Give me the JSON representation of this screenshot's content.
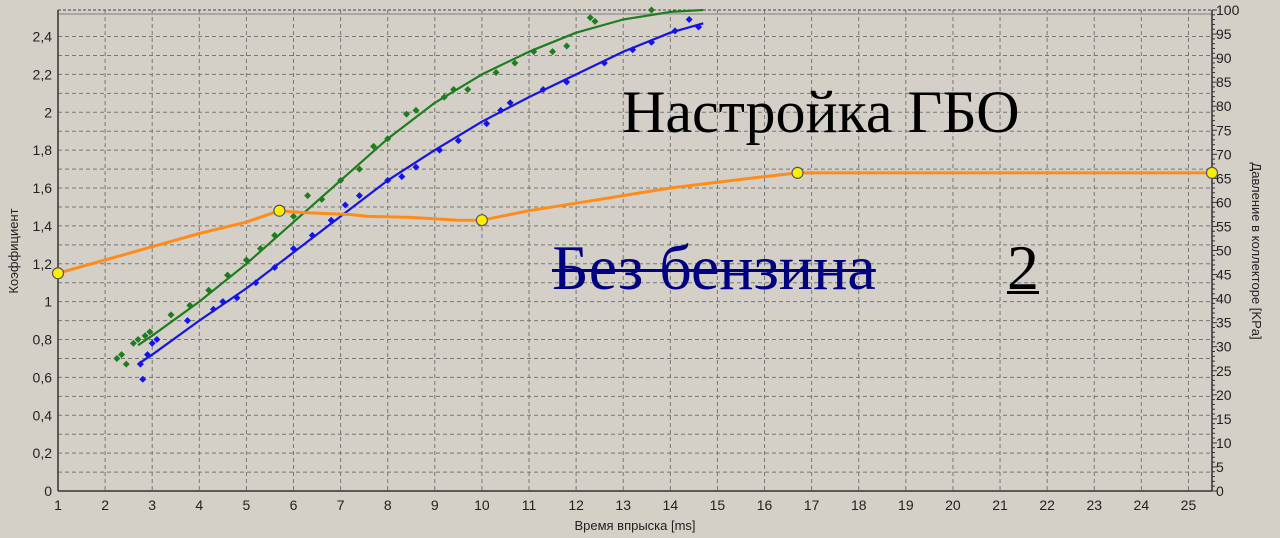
{
  "chart_data": {
    "type": "line",
    "title": "",
    "xlabel": "Время впрыска [ms]",
    "ylabel": "Коэффициент",
    "y2label": "Давление в коллекторе [KPa]",
    "xlim": [
      1,
      25.5
    ],
    "ylim": [
      0,
      2.54
    ],
    "y2lim": [
      0,
      100
    ],
    "xticks": [
      1,
      2,
      3,
      4,
      5,
      6,
      7,
      8,
      9,
      10,
      11,
      12,
      13,
      14,
      15,
      16,
      17,
      18,
      19,
      20,
      21,
      22,
      23,
      24,
      25
    ],
    "yticks": [
      "0",
      "0,2",
      "0,4",
      "0,6",
      "0,8",
      "1",
      "1,2",
      "1,4",
      "1,6",
      "1,8",
      "2",
      "2,2",
      "2,4"
    ],
    "y2ticks": [
      0,
      5,
      10,
      15,
      20,
      25,
      30,
      35,
      40,
      45,
      50,
      55,
      60,
      65,
      70,
      75,
      80,
      85,
      90,
      95,
      100
    ],
    "grid": true,
    "colors": {
      "green": "#1e7d1e",
      "blue": "#1414e6",
      "orange": "#ff8c1a",
      "marker": "#ffee00",
      "background": "#d4d0c8"
    },
    "series": [
      {
        "key": "green-fit",
        "type": "line",
        "color": "#1e7d1e",
        "points": [
          [
            2.7,
            0.77
          ],
          [
            3,
            0.82
          ],
          [
            4,
            1.0
          ],
          [
            5,
            1.2
          ],
          [
            6,
            1.42
          ],
          [
            7,
            1.64
          ],
          [
            8,
            1.86
          ],
          [
            9,
            2.05
          ],
          [
            10,
            2.2
          ],
          [
            11,
            2.32
          ],
          [
            12,
            2.42
          ],
          [
            13,
            2.49
          ],
          [
            14,
            2.53
          ],
          [
            14.7,
            2.54
          ]
        ]
      },
      {
        "key": "blue-fit",
        "type": "line",
        "color": "#1414e6",
        "points": [
          [
            2.7,
            0.67
          ],
          [
            3,
            0.72
          ],
          [
            4,
            0.9
          ],
          [
            5,
            1.07
          ],
          [
            6,
            1.26
          ],
          [
            7,
            1.45
          ],
          [
            8,
            1.64
          ],
          [
            9,
            1.8
          ],
          [
            10,
            1.95
          ],
          [
            11,
            2.08
          ],
          [
            12,
            2.2
          ],
          [
            13,
            2.32
          ],
          [
            14,
            2.42
          ],
          [
            14.7,
            2.47
          ]
        ]
      },
      {
        "key": "green-points",
        "type": "scatter",
        "color": "#1e7d1e",
        "points": [
          [
            2.25,
            0.7
          ],
          [
            2.35,
            0.72
          ],
          [
            2.45,
            0.67
          ],
          [
            2.6,
            0.78
          ],
          [
            2.7,
            0.8
          ],
          [
            2.85,
            0.82
          ],
          [
            2.95,
            0.84
          ],
          [
            3.4,
            0.93
          ],
          [
            3.8,
            0.98
          ],
          [
            4.2,
            1.06
          ],
          [
            4.6,
            1.14
          ],
          [
            5.0,
            1.22
          ],
          [
            5.3,
            1.28
          ],
          [
            5.6,
            1.35
          ],
          [
            6.0,
            1.45
          ],
          [
            6.3,
            1.56
          ],
          [
            6.6,
            1.54
          ],
          [
            7.0,
            1.64
          ],
          [
            7.4,
            1.7
          ],
          [
            7.7,
            1.82
          ],
          [
            8.0,
            1.86
          ],
          [
            8.4,
            1.99
          ],
          [
            8.6,
            2.01
          ],
          [
            9.2,
            2.08
          ],
          [
            9.4,
            2.12
          ],
          [
            9.7,
            2.12
          ],
          [
            10.3,
            2.21
          ],
          [
            10.7,
            2.26
          ],
          [
            11.1,
            2.32
          ],
          [
            11.5,
            2.32
          ],
          [
            11.8,
            2.35
          ],
          [
            12.3,
            2.5
          ],
          [
            12.4,
            2.48
          ],
          [
            13.6,
            2.54
          ]
        ]
      },
      {
        "key": "blue-points",
        "type": "scatter",
        "color": "#1414e6",
        "points": [
          [
            2.8,
            0.59
          ],
          [
            2.75,
            0.67
          ],
          [
            2.9,
            0.72
          ],
          [
            3.0,
            0.78
          ],
          [
            3.1,
            0.8
          ],
          [
            3.75,
            0.9
          ],
          [
            4.3,
            0.96
          ],
          [
            4.5,
            1.0
          ],
          [
            4.8,
            1.02
          ],
          [
            5.2,
            1.1
          ],
          [
            5.6,
            1.18
          ],
          [
            6.0,
            1.28
          ],
          [
            6.4,
            1.35
          ],
          [
            6.8,
            1.43
          ],
          [
            7.1,
            1.51
          ],
          [
            7.4,
            1.56
          ],
          [
            8.0,
            1.64
          ],
          [
            8.3,
            1.66
          ],
          [
            8.6,
            1.71
          ],
          [
            9.1,
            1.8
          ],
          [
            9.5,
            1.85
          ],
          [
            10.1,
            1.94
          ],
          [
            10.4,
            2.01
          ],
          [
            10.6,
            2.05
          ],
          [
            11.3,
            2.12
          ],
          [
            11.8,
            2.16
          ],
          [
            12.6,
            2.26
          ],
          [
            13.2,
            2.33
          ],
          [
            13.6,
            2.37
          ],
          [
            14.1,
            2.43
          ],
          [
            14.4,
            2.49
          ],
          [
            14.6,
            2.45
          ]
        ]
      },
      {
        "key": "orange-curve",
        "type": "line",
        "color": "#ff8c1a",
        "points": [
          [
            1,
            1.15
          ],
          [
            2,
            1.22
          ],
          [
            3,
            1.29
          ],
          [
            4,
            1.36
          ],
          [
            5,
            1.42
          ],
          [
            5.7,
            1.48
          ],
          [
            6.2,
            1.47
          ],
          [
            7.2,
            1.46
          ],
          [
            7.6,
            1.45
          ],
          [
            8.5,
            1.445
          ],
          [
            9.5,
            1.43
          ],
          [
            10,
            1.43
          ],
          [
            11,
            1.48
          ],
          [
            12,
            1.52
          ],
          [
            13,
            1.56
          ],
          [
            14,
            1.6
          ],
          [
            15,
            1.63
          ],
          [
            16,
            1.66
          ],
          [
            16.7,
            1.68
          ],
          [
            25.5,
            1.68
          ]
        ],
        "control_points": [
          [
            1,
            1.15
          ],
          [
            5.7,
            1.48
          ],
          [
            10,
            1.43
          ],
          [
            16.7,
            1.68
          ],
          [
            25.5,
            1.68
          ]
        ]
      }
    ]
  },
  "overlay": {
    "title": "Настройка ГБО",
    "struck_text": "Без бензина",
    "number": "2"
  }
}
